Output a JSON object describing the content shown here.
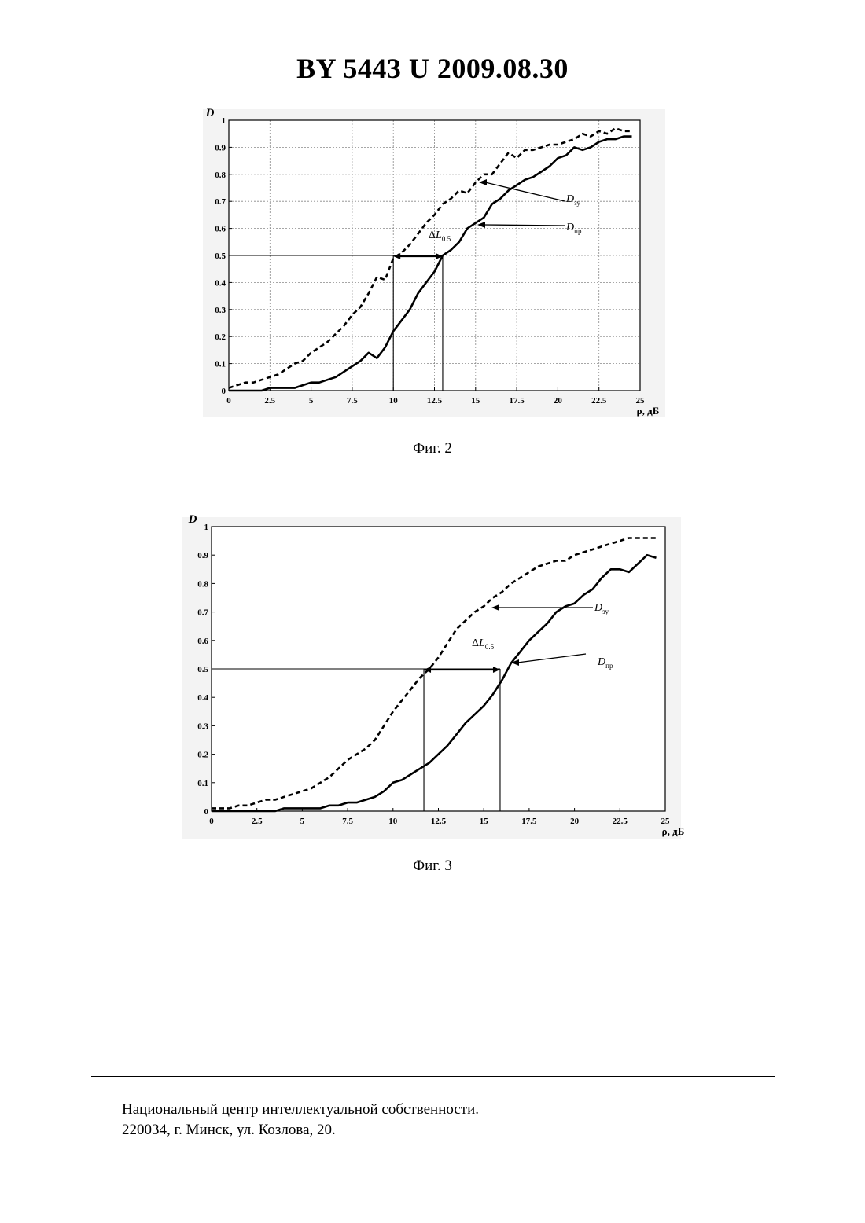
{
  "header": {
    "title": "BY  5443  U  2009.08.30"
  },
  "figures": [
    {
      "caption": "Фиг. 2"
    },
    {
      "caption": "Фиг. 3"
    }
  ],
  "footer": {
    "line1": "Национальный центр интеллектуальной собственности.",
    "line2": "220034, г. Минск, ул. Козлова, 20."
  },
  "chart_data": [
    {
      "type": "line",
      "ylabel": "D",
      "xlabel": "ρ, дБ",
      "xlim": [
        0,
        25
      ],
      "ylim": [
        0,
        1
      ],
      "x_ticks": [
        "0",
        "2.5",
        "5",
        "7.5",
        "10",
        "12.5",
        "15",
        "17.5",
        "20",
        "22.5",
        "25"
      ],
      "y_ticks": [
        "0",
        "0.1",
        "0.2",
        "0.3",
        "0.4",
        "0.5",
        "0.6",
        "0.7",
        "0.8",
        "0.9",
        "1"
      ],
      "grid": true,
      "series": [
        {
          "name": "Dзу",
          "label_main": "D",
          "label_sub": "зу",
          "style": "dashed",
          "x": [
            0,
            0.5,
            1,
            1.5,
            2,
            2.5,
            3,
            3.5,
            4,
            4.5,
            5,
            5.5,
            6,
            6.5,
            7,
            7.5,
            8,
            8.5,
            9,
            9.5,
            10,
            10.5,
            11,
            11.5,
            12,
            12.5,
            13,
            13.5,
            14,
            14.5,
            15,
            15.5,
            16,
            16.5,
            17,
            17.5,
            18,
            18.5,
            19,
            19.5,
            20,
            20.5,
            21,
            21.5,
            22,
            22.5,
            23,
            23.5,
            24,
            24.5
          ],
          "y": [
            0.01,
            0.02,
            0.03,
            0.03,
            0.04,
            0.05,
            0.06,
            0.08,
            0.1,
            0.11,
            0.14,
            0.16,
            0.18,
            0.21,
            0.24,
            0.28,
            0.31,
            0.36,
            0.42,
            0.41,
            0.49,
            0.51,
            0.54,
            0.58,
            0.62,
            0.65,
            0.69,
            0.71,
            0.74,
            0.73,
            0.77,
            0.8,
            0.8,
            0.84,
            0.88,
            0.86,
            0.89,
            0.89,
            0.9,
            0.91,
            0.91,
            0.92,
            0.93,
            0.95,
            0.94,
            0.96,
            0.95,
            0.97,
            0.96,
            0.96
          ]
        },
        {
          "name": "Dпр",
          "label_main": "D",
          "label_sub": "пр",
          "style": "solid",
          "x": [
            0,
            0.5,
            1,
            1.5,
            2,
            2.5,
            3,
            3.5,
            4,
            4.5,
            5,
            5.5,
            6,
            6.5,
            7,
            7.5,
            8,
            8.5,
            9,
            9.5,
            10,
            10.5,
            11,
            11.5,
            12,
            12.5,
            13,
            13.5,
            14,
            14.5,
            15,
            15.5,
            16,
            16.5,
            17,
            17.5,
            18,
            18.5,
            19,
            19.5,
            20,
            20.5,
            21,
            21.5,
            22,
            22.5,
            23,
            23.5,
            24,
            24.5
          ],
          "y": [
            0.0,
            0.0,
            0.0,
            0.0,
            0.0,
            0.01,
            0.01,
            0.01,
            0.01,
            0.02,
            0.03,
            0.03,
            0.04,
            0.05,
            0.07,
            0.09,
            0.11,
            0.14,
            0.12,
            0.16,
            0.22,
            0.26,
            0.3,
            0.36,
            0.4,
            0.44,
            0.5,
            0.52,
            0.55,
            0.6,
            0.62,
            0.64,
            0.69,
            0.71,
            0.74,
            0.76,
            0.78,
            0.79,
            0.81,
            0.83,
            0.86,
            0.87,
            0.9,
            0.89,
            0.9,
            0.92,
            0.93,
            0.93,
            0.94,
            0.94
          ]
        }
      ],
      "annotations": [
        {
          "text": "ΔL",
          "sub": "0.5",
          "from_x": 10,
          "to_x": 13,
          "level": 0.5
        }
      ]
    },
    {
      "type": "line",
      "ylabel": "D",
      "xlabel": "ρ, дБ",
      "xlim": [
        0,
        25
      ],
      "ylim": [
        0,
        1
      ],
      "x_ticks": [
        "0",
        "2.5",
        "5",
        "7.5",
        "10",
        "12.5",
        "15",
        "17.5",
        "20",
        "22.5",
        "25"
      ],
      "y_ticks": [
        "0",
        "0.1",
        "0.2",
        "0.3",
        "0.4",
        "0.5",
        "0.6",
        "0.7",
        "0.8",
        "0.9",
        "1"
      ],
      "grid": false,
      "series": [
        {
          "name": "Dзу",
          "label_main": "D",
          "label_sub": "зу",
          "style": "dashed",
          "x": [
            0,
            0.5,
            1,
            1.5,
            2,
            2.5,
            3,
            3.5,
            4,
            4.5,
            5,
            5.5,
            6,
            6.5,
            7,
            7.5,
            8,
            8.5,
            9,
            9.5,
            10,
            10.5,
            11,
            11.5,
            12,
            12.5,
            13,
            13.5,
            14,
            14.5,
            15,
            15.5,
            16,
            16.5,
            17,
            17.5,
            18,
            18.5,
            19,
            19.5,
            20,
            20.5,
            21,
            21.5,
            22,
            22.5,
            23,
            23.5,
            24,
            24.5
          ],
          "y": [
            0.01,
            0.01,
            0.01,
            0.02,
            0.02,
            0.03,
            0.04,
            0.04,
            0.05,
            0.06,
            0.07,
            0.08,
            0.1,
            0.12,
            0.15,
            0.18,
            0.2,
            0.22,
            0.25,
            0.3,
            0.35,
            0.39,
            0.43,
            0.47,
            0.5,
            0.54,
            0.59,
            0.64,
            0.67,
            0.7,
            0.72,
            0.75,
            0.77,
            0.8,
            0.82,
            0.84,
            0.86,
            0.87,
            0.88,
            0.88,
            0.9,
            0.91,
            0.92,
            0.93,
            0.94,
            0.95,
            0.96,
            0.96,
            0.96,
            0.96
          ]
        },
        {
          "name": "Dпр",
          "label_main": "D",
          "label_sub": "пр",
          "style": "solid",
          "x": [
            0,
            0.5,
            1,
            1.5,
            2,
            2.5,
            3,
            3.5,
            4,
            4.5,
            5,
            5.5,
            6,
            6.5,
            7,
            7.5,
            8,
            8.5,
            9,
            9.5,
            10,
            10.5,
            11,
            11.5,
            12,
            12.5,
            13,
            13.5,
            14,
            14.5,
            15,
            15.5,
            16,
            16.5,
            17,
            17.5,
            18,
            18.5,
            19,
            19.5,
            20,
            20.5,
            21,
            21.5,
            22,
            22.5,
            23,
            23.5,
            24,
            24.5
          ],
          "y": [
            0.0,
            0.0,
            0.0,
            0.0,
            0.0,
            0.0,
            0.0,
            0.0,
            0.01,
            0.01,
            0.01,
            0.01,
            0.01,
            0.02,
            0.02,
            0.03,
            0.03,
            0.04,
            0.05,
            0.07,
            0.1,
            0.11,
            0.13,
            0.15,
            0.17,
            0.2,
            0.23,
            0.27,
            0.31,
            0.34,
            0.37,
            0.41,
            0.46,
            0.52,
            0.56,
            0.6,
            0.63,
            0.66,
            0.7,
            0.72,
            0.73,
            0.76,
            0.78,
            0.82,
            0.85,
            0.85,
            0.84,
            0.87,
            0.9,
            0.89
          ]
        }
      ],
      "annotations": [
        {
          "text": "ΔL",
          "sub": "0.5",
          "from_x": 11.7,
          "to_x": 15.9,
          "level": 0.5
        }
      ]
    }
  ]
}
